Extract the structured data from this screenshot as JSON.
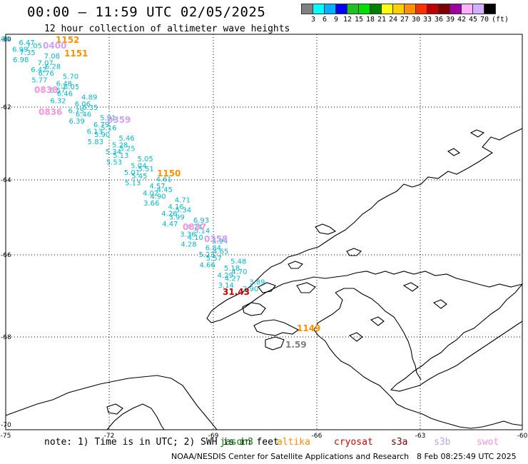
{
  "title": "00:00 – 11:59 UTC 02/05/2025",
  "subtitle": "12 hour collection of altimeter wave heights",
  "legend": {
    "colors": [
      "#808080",
      "#00ffff",
      "#00b0ff",
      "#0000ff",
      "#20c020",
      "#00e000",
      "#008000",
      "#ffff00",
      "#ffd000",
      "#ff9000",
      "#ff3000",
      "#c00000",
      "#800000",
      "#a000a0",
      "#ffb0ff",
      "#d0b0ff",
      "#000000"
    ],
    "labels": [
      "3",
      "6",
      "9",
      "12",
      "15",
      "18",
      "21",
      "24",
      "27",
      "30",
      "33",
      "36",
      "39",
      "42",
      "45",
      "70",
      "(ft)"
    ]
  },
  "map": {
    "lon_labels": [
      "-75",
      "-72",
      "-69",
      "-66",
      "-63",
      "-60"
    ],
    "lat_labels": [
      "-60",
      "-62",
      "-64",
      "-66",
      "-68",
      "-70"
    ]
  },
  "pass_labels": [
    {
      "text": "1152",
      "color": "#ff9000"
    },
    {
      "text": "0400",
      "color": "#d0a0ff"
    },
    {
      "text": "1151",
      "color": "#ff9000"
    },
    {
      "text": "0838",
      "color": "#ff90e0"
    },
    {
      "text": "0836",
      "color": "#ff90e0"
    },
    {
      "text": "0359",
      "color": "#d0a0ff"
    },
    {
      "text": "1150",
      "color": "#ff9000"
    },
    {
      "text": "0837",
      "color": "#ff90e0"
    },
    {
      "text": "0358",
      "color": "#d0a0ff"
    },
    {
      "text": "1149",
      "color": "#ff9000"
    },
    {
      "text": "31.43",
      "color": "#d00000"
    },
    {
      "text": "1.59",
      "color": "#808080"
    }
  ],
  "swh_values": [
    "6.96",
    "6.47",
    "7.05",
    "6.99",
    "7.35",
    "7.08",
    "6.98",
    "7.07",
    "6.28",
    "6.42",
    "6.76",
    "5.70",
    "5.77",
    "6.48",
    "6.05",
    "6.57",
    "6.46",
    "4.89",
    "6.32",
    "6.06",
    "6.35",
    "6.75",
    "6.46",
    "5.91",
    "6.39",
    "6.79",
    "5.16",
    "6.13",
    "5.90",
    "5.46",
    "5.83",
    "5.28",
    "5.25",
    "5.34",
    "5.13",
    "5.05",
    "5.53",
    "5.04",
    "5.51",
    "5.01",
    "5.45",
    "4.61",
    "5.13",
    "4.57",
    "4.45",
    "4.02",
    "4.90",
    "4.71",
    "3.66",
    "4.16",
    "5.34",
    "4.26",
    "3.99",
    "6.93",
    "4.47",
    "4.74",
    "5.14",
    "3.36",
    "4.10",
    "4.94",
    "4.28",
    "6.84",
    "4.65",
    "5.23",
    "5.57",
    "5.48",
    "4.66",
    "5.18",
    "4.70",
    "4.29",
    "4.27",
    "3.89",
    "3.14",
    "2.90"
  ],
  "footer": {
    "note": "note: 1) Time is in UTC; 2) SWH is in feet",
    "satellites": [
      {
        "name": "jason3",
        "color": "#008000"
      },
      {
        "name": "altika",
        "color": "#ff9000"
      },
      {
        "name": "cryosat",
        "color": "#e00000"
      },
      {
        "name": "s3a",
        "color": "#800000"
      },
      {
        "name": "s3b",
        "color": "#c0a0ff"
      },
      {
        "name": "swot",
        "color": "#ff90e0"
      }
    ],
    "credit": "NOAA/NESDIS Center for Satellite Applications and Research",
    "timestamp": "8 Feb 08:25:49 UTC 2025"
  }
}
